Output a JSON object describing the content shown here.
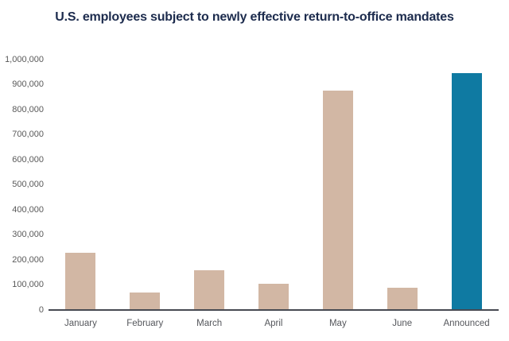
{
  "title": "U.S. employees subject to newly effective return-to-office mandates",
  "colors": {
    "title": "#1c2b4d",
    "bar_default": "#d2b7a4",
    "bar_highlight": "#0f7aa2",
    "axis_line": "#474a52",
    "y_tick_label": "#595959",
    "x_tick_label": "#55575c",
    "background": "#ffffff"
  },
  "chart_data": {
    "type": "bar",
    "title": "U.S. employees subject to newly effective return-to-office mandates",
    "categories": [
      "January",
      "February",
      "March",
      "April",
      "May",
      "June",
      "Announced"
    ],
    "values": [
      230000,
      70000,
      160000,
      105000,
      875000,
      90000,
      945000
    ],
    "bar_colors": [
      "#d2b7a4",
      "#d2b7a4",
      "#d2b7a4",
      "#d2b7a4",
      "#d2b7a4",
      "#d2b7a4",
      "#0f7aa2"
    ],
    "highlighted_category": "Announced",
    "xlabel": "",
    "ylabel": "",
    "ylim": [
      0,
      1000000
    ],
    "ytick_step": 100000,
    "ytick_labels_bottom_to_top": [
      "0",
      "100,000",
      "200,000",
      "300,000",
      "400,000",
      "500,000",
      "600,000",
      "700,000",
      "800,000",
      "900,000",
      "1,000,000"
    ],
    "grid": false,
    "legend": false
  }
}
